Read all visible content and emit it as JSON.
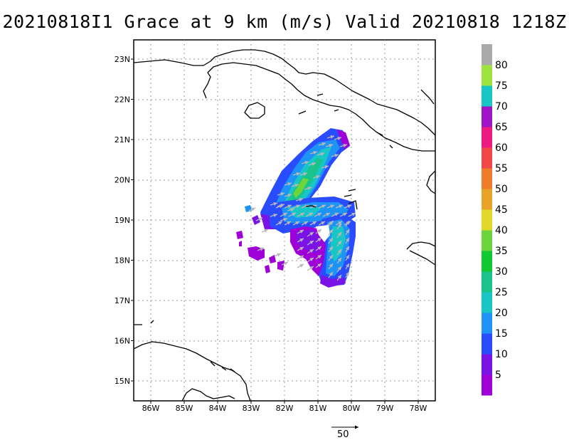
{
  "title": "20210818I1 Grace at 9 km (m/s) Valid 20210818 1218Z",
  "map": {
    "lon_range": [
      -86.6,
      -77.6
    ],
    "lat_range": [
      14.5,
      23.5
    ],
    "lon_ticks": [
      "86W",
      "85W",
      "84W",
      "83W",
      "82W",
      "81W",
      "80W",
      "79W",
      "78W"
    ],
    "lat_ticks": [
      "23N",
      "22N",
      "21N",
      "20N",
      "19N",
      "18N",
      "17N",
      "16N",
      "15N"
    ],
    "grid": "dotted"
  },
  "colorbar": {
    "levels": [
      "5",
      "10",
      "15",
      "20",
      "25",
      "30",
      "35",
      "40",
      "45",
      "50",
      "55",
      "60",
      "65",
      "70",
      "75",
      "80"
    ],
    "colors": [
      "#a000d8",
      "#7a14e6",
      "#2a4cff",
      "#1d94f5",
      "#19c6c6",
      "#18c48a",
      "#10c830",
      "#6ed43c",
      "#e2d828",
      "#e8a428",
      "#ef7c2a",
      "#f04848",
      "#ee1a82",
      "#a014c8",
      "#19c6c6",
      "#9ee43c",
      "#aaaaaa"
    ]
  },
  "reference_vector": {
    "label": "50",
    "units": "m/s"
  }
}
